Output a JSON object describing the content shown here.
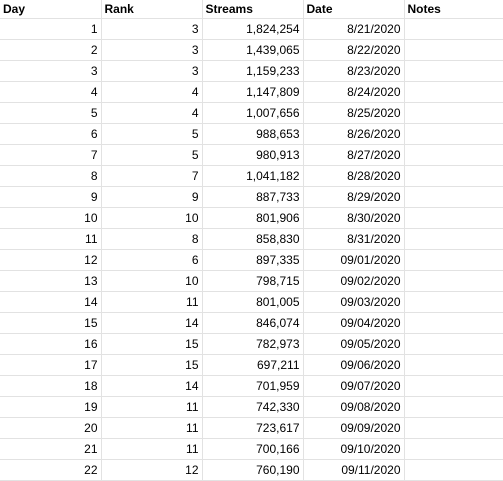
{
  "headers": {
    "day": "Day",
    "rank": "Rank",
    "streams": "Streams",
    "date": "Date",
    "notes": "Notes"
  },
  "rows": [
    {
      "day": "1",
      "rank": "3",
      "streams": "1,824,254",
      "date": "8/21/2020",
      "notes": ""
    },
    {
      "day": "2",
      "rank": "3",
      "streams": "1,439,065",
      "date": "8/22/2020",
      "notes": ""
    },
    {
      "day": "3",
      "rank": "3",
      "streams": "1,159,233",
      "date": "8/23/2020",
      "notes": ""
    },
    {
      "day": "4",
      "rank": "4",
      "streams": "1,147,809",
      "date": "8/24/2020",
      "notes": ""
    },
    {
      "day": "5",
      "rank": "4",
      "streams": "1,007,656",
      "date": "8/25/2020",
      "notes": ""
    },
    {
      "day": "6",
      "rank": "5",
      "streams": "988,653",
      "date": "8/26/2020",
      "notes": ""
    },
    {
      "day": "7",
      "rank": "5",
      "streams": "980,913",
      "date": "8/27/2020",
      "notes": ""
    },
    {
      "day": "8",
      "rank": "7",
      "streams": "1,041,182",
      "date": "8/28/2020",
      "notes": ""
    },
    {
      "day": "9",
      "rank": "9",
      "streams": "887,733",
      "date": "8/29/2020",
      "notes": ""
    },
    {
      "day": "10",
      "rank": "10",
      "streams": "801,906",
      "date": "8/30/2020",
      "notes": ""
    },
    {
      "day": "11",
      "rank": "8",
      "streams": "858,830",
      "date": "8/31/2020",
      "notes": ""
    },
    {
      "day": "12",
      "rank": "6",
      "streams": "897,335",
      "date": "09/01/2020",
      "notes": ""
    },
    {
      "day": "13",
      "rank": "10",
      "streams": "798,715",
      "date": "09/02/2020",
      "notes": ""
    },
    {
      "day": "14",
      "rank": "11",
      "streams": "801,005",
      "date": "09/03/2020",
      "notes": ""
    },
    {
      "day": "15",
      "rank": "14",
      "streams": "846,074",
      "date": "09/04/2020",
      "notes": ""
    },
    {
      "day": "16",
      "rank": "15",
      "streams": "782,973",
      "date": "09/05/2020",
      "notes": ""
    },
    {
      "day": "17",
      "rank": "15",
      "streams": "697,211",
      "date": "09/06/2020",
      "notes": ""
    },
    {
      "day": "18",
      "rank": "14",
      "streams": "701,959",
      "date": "09/07/2020",
      "notes": ""
    },
    {
      "day": "19",
      "rank": "11",
      "streams": "742,330",
      "date": "09/08/2020",
      "notes": ""
    },
    {
      "day": "20",
      "rank": "11",
      "streams": "723,617",
      "date": "09/09/2020",
      "notes": ""
    },
    {
      "day": "21",
      "rank": "11",
      "streams": "700,166",
      "date": "09/10/2020",
      "notes": ""
    },
    {
      "day": "22",
      "rank": "12",
      "streams": "760,190",
      "date": "09/11/2020",
      "notes": ""
    }
  ]
}
